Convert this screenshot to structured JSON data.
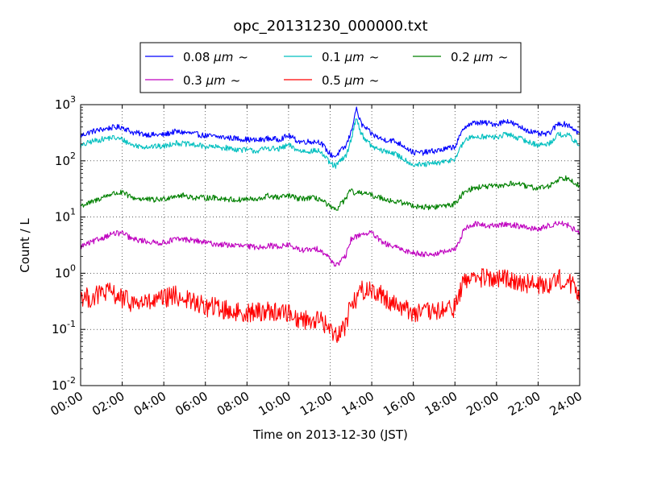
{
  "chart_data": {
    "type": "line",
    "title": "opc_20131230_000000.txt",
    "xlabel": "Time on 2013-12-30 (JST)",
    "ylabel": "Count / L",
    "x_unit": "hour of day",
    "xlim": [
      0,
      24
    ],
    "ylim": [
      0.01,
      1000
    ],
    "yscale": "log",
    "grid": true,
    "legend_position": "top-center",
    "x_ticks": [
      {
        "value": 0,
        "label": "00:00"
      },
      {
        "value": 2,
        "label": "02:00"
      },
      {
        "value": 4,
        "label": "04:00"
      },
      {
        "value": 6,
        "label": "06:00"
      },
      {
        "value": 8,
        "label": "08:00"
      },
      {
        "value": 10,
        "label": "10:00"
      },
      {
        "value": 12,
        "label": "12:00"
      },
      {
        "value": 14,
        "label": "14:00"
      },
      {
        "value": 16,
        "label": "16:00"
      },
      {
        "value": 18,
        "label": "18:00"
      },
      {
        "value": 20,
        "label": "20:00"
      },
      {
        "value": 22,
        "label": "22:00"
      },
      {
        "value": 24,
        "label": "24:00"
      }
    ],
    "y_ticks": [
      {
        "value": 0.01,
        "base": "10",
        "exp": "-2"
      },
      {
        "value": 0.1,
        "base": "10",
        "exp": "-1"
      },
      {
        "value": 1,
        "base": "10",
        "exp": "0"
      },
      {
        "value": 10,
        "base": "10",
        "exp": "1"
      },
      {
        "value": 100,
        "base": "10",
        "exp": "2"
      },
      {
        "value": 1000,
        "base": "10",
        "exp": "3"
      }
    ],
    "x": [
      0,
      0.5,
      1,
      1.5,
      2,
      2.5,
      3,
      3.5,
      4,
      4.5,
      5,
      5.5,
      6,
      6.5,
      7,
      7.5,
      8,
      8.5,
      9,
      9.5,
      10,
      10.5,
      11,
      11.5,
      12,
      12.25,
      12.5,
      12.75,
      13,
      13.25,
      13.5,
      14,
      14.5,
      15,
      15.5,
      16,
      16.5,
      17,
      17.5,
      18,
      18.5,
      19,
      19.5,
      20,
      20.5,
      21,
      21.5,
      22,
      22.5,
      23,
      23.5,
      24
    ],
    "series": [
      {
        "name": "0.08",
        "unit": "μm",
        "suffix": "~",
        "color": "#0000ff",
        "noise": 0.05,
        "values": [
          280,
          330,
          360,
          390,
          400,
          320,
          300,
          290,
          290,
          330,
          320,
          300,
          280,
          270,
          260,
          250,
          240,
          230,
          250,
          240,
          280,
          220,
          220,
          220,
          130,
          120,
          150,
          180,
          320,
          850,
          450,
          300,
          240,
          230,
          190,
          140,
          140,
          150,
          160,
          180,
          420,
          480,
          470,
          450,
          520,
          420,
          350,
          300,
          300,
          470,
          430,
          300
        ]
      },
      {
        "name": "0.1",
        "unit": "μm",
        "suffix": "~",
        "color": "#00bfbf",
        "noise": 0.05,
        "values": [
          180,
          220,
          240,
          260,
          240,
          190,
          180,
          180,
          180,
          210,
          200,
          190,
          180,
          175,
          170,
          160,
          155,
          150,
          170,
          160,
          190,
          150,
          150,
          150,
          90,
          80,
          100,
          120,
          230,
          600,
          300,
          180,
          150,
          140,
          110,
          85,
          85,
          90,
          95,
          110,
          240,
          270,
          270,
          260,
          300,
          260,
          220,
          190,
          200,
          300,
          280,
          180
        ]
      },
      {
        "name": "0.2",
        "unit": "μm",
        "suffix": "~",
        "color": "#008000",
        "noise": 0.05,
        "values": [
          16,
          18,
          22,
          26,
          27,
          22,
          21,
          20,
          21,
          24,
          24,
          22,
          22,
          22,
          21,
          20,
          21,
          20,
          24,
          22,
          24,
          21,
          22,
          21,
          15,
          13,
          17,
          21,
          30,
          25,
          28,
          24,
          22,
          19,
          18,
          16,
          15,
          15,
          16,
          17,
          30,
          33,
          35,
          35,
          38,
          40,
          34,
          33,
          35,
          48,
          50,
          35
        ]
      },
      {
        "name": "0.3",
        "unit": "μm",
        "suffix": "~",
        "color": "#bf00bf",
        "noise": 0.05,
        "values": [
          3,
          3.5,
          4.2,
          5,
          5.2,
          4,
          3.8,
          3.5,
          3.5,
          4,
          4,
          3.8,
          3.5,
          3.3,
          3.2,
          3.1,
          3,
          2.9,
          3.1,
          3,
          3.2,
          2.6,
          2.6,
          2.7,
          1.8,
          1.4,
          1.6,
          2,
          4,
          4.5,
          5,
          5.2,
          3.5,
          3,
          2.6,
          2.3,
          2.2,
          2.2,
          2.4,
          2.6,
          6.5,
          7.5,
          7,
          7,
          7.5,
          7,
          6.5,
          6,
          7,
          8,
          7,
          5
        ]
      },
      {
        "name": "0.5",
        "unit": "μm",
        "suffix": "~",
        "color": "#ff0000",
        "noise": 0.18,
        "values": [
          0.4,
          0.35,
          0.45,
          0.45,
          0.35,
          0.3,
          0.3,
          0.3,
          0.35,
          0.4,
          0.35,
          0.3,
          0.25,
          0.25,
          0.22,
          0.2,
          0.2,
          0.2,
          0.22,
          0.2,
          0.2,
          0.15,
          0.15,
          0.15,
          0.1,
          0.08,
          0.1,
          0.12,
          0.3,
          0.35,
          0.5,
          0.5,
          0.4,
          0.3,
          0.25,
          0.2,
          0.2,
          0.2,
          0.22,
          0.25,
          0.8,
          0.85,
          0.8,
          0.75,
          0.8,
          0.75,
          0.65,
          0.6,
          0.65,
          0.8,
          0.7,
          0.4
        ]
      }
    ]
  }
}
